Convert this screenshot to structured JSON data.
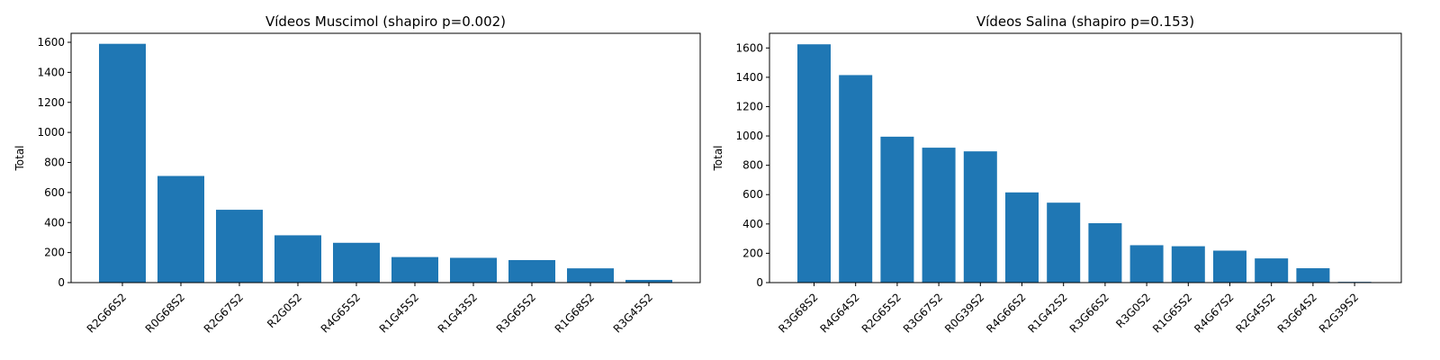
{
  "chart_data": [
    {
      "type": "bar",
      "title": "Vídeos Muscimol (shapiro p=0.002)",
      "xlabel": "",
      "ylabel": "Total",
      "ylim": [
        0,
        1660
      ],
      "yticks": [
        0,
        200,
        400,
        600,
        800,
        1000,
        1200,
        1400,
        1600
      ],
      "grid": false,
      "color": "#1f77b4",
      "categories": [
        "R2G66S2",
        "R0G68S2",
        "R2G67S2",
        "R2G0S2",
        "R4G65S2",
        "R1G45S2",
        "R1G43S2",
        "R3G65S2",
        "R1G68S2",
        "R3G45S2"
      ],
      "values": [
        1590,
        710,
        485,
        315,
        265,
        170,
        165,
        150,
        95,
        18
      ]
    },
    {
      "type": "bar",
      "title": "Vídeos Salina (shapiro p=0.153)",
      "xlabel": "",
      "ylabel": "Total",
      "ylim": [
        0,
        1700
      ],
      "yticks": [
        0,
        200,
        400,
        600,
        800,
        1000,
        1200,
        1400,
        1600
      ],
      "grid": false,
      "color": "#1f77b4",
      "categories": [
        "R3G68S2",
        "R4G64S2",
        "R2G65S2",
        "R3G67S2",
        "R0G39S2",
        "R4G66S2",
        "R1G42S2",
        "R3G66S2",
        "R3G0S2",
        "R1G65S2",
        "R4G67S2",
        "R2G45S2",
        "R3G64S2",
        "R2G39S2"
      ],
      "values": [
        1625,
        1415,
        995,
        920,
        895,
        615,
        545,
        405,
        255,
        248,
        218,
        165,
        98,
        5
      ]
    }
  ]
}
